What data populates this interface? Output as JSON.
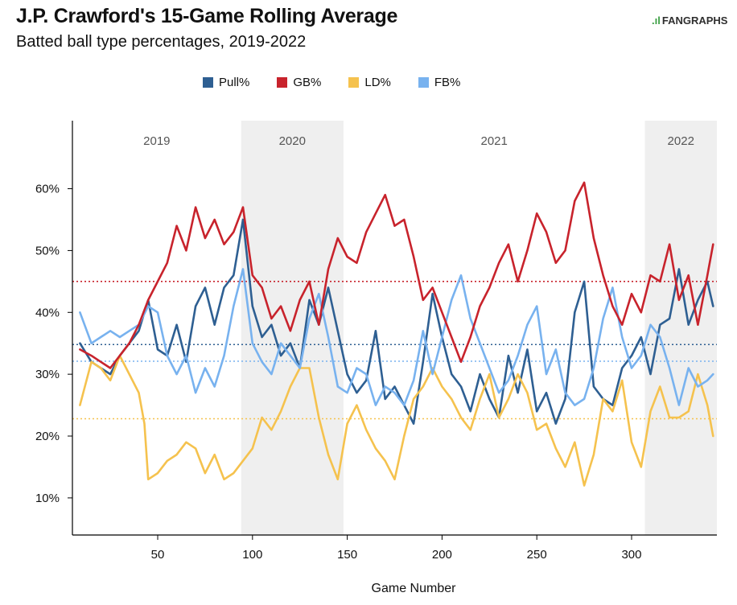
{
  "header": {
    "title": "J.P. Crawford's 15-Game Rolling Average",
    "subtitle": "Batted ball type percentages, 2019-2022",
    "logo": "FANGRAPHS"
  },
  "chart_data": {
    "type": "line",
    "xlabel": "Game Number",
    "ylabel": "",
    "xlim": [
      5,
      345
    ],
    "ylim": [
      4,
      71
    ],
    "x_ticks": [
      50,
      100,
      150,
      200,
      250,
      300
    ],
    "x_tick_labels": [
      "50",
      "100",
      "150",
      "200",
      "250",
      "300"
    ],
    "y_ticks": [
      10,
      20,
      30,
      40,
      50,
      60
    ],
    "y_tick_labels": [
      "10%",
      "20%",
      "30%",
      "40%",
      "50%",
      "60%"
    ],
    "legend_position": "top",
    "seasons": [
      {
        "label": "2019",
        "start": 5,
        "end": 94,
        "shaded": false
      },
      {
        "label": "2020",
        "start": 94,
        "end": 148,
        "shaded": true
      },
      {
        "label": "2021",
        "start": 148,
        "end": 307,
        "shaded": false
      },
      {
        "label": "2022",
        "start": 307,
        "end": 345,
        "shaded": true
      }
    ],
    "series": [
      {
        "name": "Pull%",
        "color": "#2e5f92",
        "average": 34.8,
        "x": [
          9,
          15,
          20,
          25,
          30,
          35,
          40,
          45,
          50,
          55,
          60,
          65,
          70,
          75,
          80,
          85,
          90,
          95,
          100,
          105,
          110,
          115,
          120,
          125,
          130,
          135,
          140,
          145,
          150,
          155,
          160,
          165,
          170,
          175,
          180,
          185,
          190,
          195,
          200,
          205,
          210,
          215,
          220,
          225,
          230,
          235,
          240,
          245,
          250,
          255,
          260,
          265,
          270,
          275,
          280,
          285,
          290,
          295,
          300,
          305,
          310,
          315,
          320,
          325,
          330,
          335,
          340,
          343
        ],
        "values": [
          35,
          32,
          31,
          30,
          33,
          35,
          37,
          42,
          34,
          33,
          38,
          32,
          41,
          44,
          38,
          44,
          46,
          55,
          41,
          36,
          38,
          33,
          35,
          31,
          42,
          38,
          44,
          37,
          30,
          27,
          29,
          37,
          26,
          28,
          25,
          22,
          32,
          43,
          36,
          30,
          28,
          24,
          30,
          26,
          23,
          33,
          27,
          34,
          24,
          27,
          22,
          26,
          40,
          45,
          28,
          26,
          25,
          31,
          33,
          36,
          30,
          38,
          39,
          47,
          38,
          42,
          45,
          41
        ]
      },
      {
        "name": "GB%",
        "color": "#c8232c",
        "average": 45.0,
        "x": [
          9,
          15,
          20,
          25,
          30,
          35,
          40,
          45,
          50,
          55,
          60,
          65,
          70,
          75,
          80,
          85,
          90,
          95,
          100,
          105,
          110,
          115,
          120,
          125,
          130,
          135,
          140,
          145,
          150,
          155,
          160,
          165,
          170,
          175,
          180,
          185,
          190,
          195,
          200,
          205,
          210,
          215,
          220,
          225,
          230,
          235,
          240,
          245,
          250,
          255,
          260,
          265,
          270,
          275,
          280,
          285,
          290,
          295,
          300,
          305,
          310,
          315,
          320,
          325,
          330,
          335,
          340,
          343
        ],
        "values": [
          34,
          33,
          32,
          31,
          33,
          35,
          38,
          42,
          45,
          48,
          54,
          50,
          57,
          52,
          55,
          51,
          53,
          57,
          46,
          44,
          39,
          41,
          37,
          42,
          45,
          38,
          47,
          52,
          49,
          48,
          53,
          56,
          59,
          54,
          55,
          49,
          42,
          44,
          40,
          36,
          32,
          36,
          41,
          44,
          48,
          51,
          45,
          50,
          56,
          53,
          48,
          50,
          58,
          61,
          52,
          46,
          41,
          38,
          43,
          40,
          46,
          45,
          51,
          42,
          46,
          38,
          46,
          51
        ]
      },
      {
        "name": "LD%",
        "color": "#f5c24e",
        "average": 22.8,
        "x": [
          9,
          15,
          20,
          25,
          30,
          35,
          40,
          43,
          45,
          50,
          55,
          60,
          65,
          70,
          75,
          80,
          85,
          90,
          95,
          100,
          105,
          110,
          115,
          120,
          125,
          130,
          135,
          140,
          145,
          150,
          155,
          160,
          165,
          170,
          175,
          180,
          185,
          190,
          195,
          200,
          205,
          210,
          215,
          220,
          225,
          230,
          235,
          240,
          245,
          250,
          255,
          260,
          265,
          270,
          275,
          280,
          285,
          290,
          295,
          300,
          305,
          310,
          315,
          320,
          325,
          330,
          335,
          340,
          343
        ],
        "values": [
          25,
          32,
          31,
          29,
          33,
          30,
          27,
          22,
          13,
          14,
          16,
          17,
          19,
          18,
          14,
          17,
          13,
          14,
          16,
          18,
          23,
          21,
          24,
          28,
          31,
          31,
          23,
          17,
          13,
          22,
          25,
          21,
          18,
          16,
          13,
          20,
          26,
          28,
          31,
          28,
          26,
          23,
          21,
          26,
          30,
          23,
          26,
          30,
          27,
          21,
          22,
          18,
          15,
          19,
          12,
          17,
          26,
          24,
          29,
          19,
          15,
          24,
          28,
          23,
          23,
          24,
          30,
          25,
          20
        ]
      },
      {
        "name": "FB%",
        "color": "#78b2ef",
        "average": 32.1,
        "x": [
          9,
          15,
          20,
          25,
          30,
          35,
          40,
          45,
          50,
          55,
          60,
          65,
          70,
          75,
          80,
          85,
          90,
          95,
          100,
          105,
          110,
          115,
          120,
          125,
          130,
          135,
          140,
          145,
          150,
          155,
          160,
          165,
          170,
          175,
          180,
          185,
          190,
          195,
          200,
          205,
          210,
          215,
          220,
          225,
          230,
          235,
          240,
          245,
          250,
          255,
          260,
          265,
          270,
          275,
          280,
          285,
          290,
          295,
          300,
          305,
          310,
          315,
          320,
          325,
          330,
          335,
          340,
          343
        ],
        "values": [
          40,
          35,
          36,
          37,
          36,
          37,
          38,
          41,
          40,
          33,
          30,
          33,
          27,
          31,
          28,
          33,
          41,
          47,
          35,
          32,
          30,
          35,
          33,
          31,
          39,
          43,
          36,
          28,
          27,
          31,
          30,
          25,
          28,
          27,
          25,
          29,
          37,
          30,
          36,
          42,
          46,
          39,
          35,
          31,
          27,
          29,
          33,
          38,
          41,
          30,
          34,
          27,
          25,
          26,
          31,
          39,
          44,
          36,
          31,
          33,
          38,
          36,
          31,
          25,
          31,
          28,
          29,
          30
        ]
      }
    ]
  }
}
